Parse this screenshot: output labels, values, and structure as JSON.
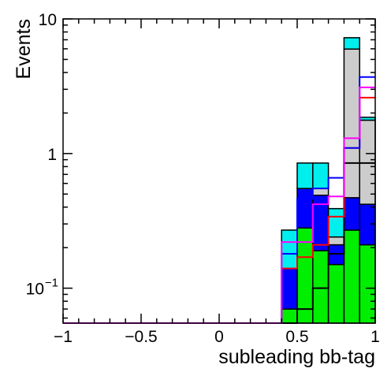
{
  "chart_data": {
    "type": "histogram-stack",
    "xlabel": "subleading bb-tag",
    "ylabel": "Events",
    "xlim": [
      -1,
      1
    ],
    "ylim": [
      0.055,
      10
    ],
    "yscale": "log",
    "grid": false,
    "bin_edges": [
      0.4,
      0.5,
      0.6,
      0.7,
      0.8,
      0.9,
      1.0
    ],
    "x_ticks": [
      {
        "value": -1,
        "label": "−1"
      },
      {
        "value": -0.5,
        "label": "−0.5"
      },
      {
        "value": 0,
        "label": "0"
      },
      {
        "value": 0.5,
        "label": "0.5"
      },
      {
        "value": 1,
        "label": "1"
      }
    ],
    "y_ticks": [
      {
        "value": 10,
        "label": "10"
      },
      {
        "value": 1,
        "label": "1"
      },
      {
        "value": 0.1,
        "label": "10",
        "exp": "−1"
      }
    ],
    "stack": [
      {
        "color": "#00ee00",
        "values": [
          0.07,
          0.28,
          0.19,
          0.15,
          0.27,
          0.21
        ]
      },
      {
        "color": "#0000ff",
        "values": [
          0.07,
          0.27,
          0.3,
          0.06,
          0.2,
          0.21
        ]
      },
      {
        "color": "#cccccc",
        "values": [
          0,
          0,
          0.06,
          0.03,
          5.5,
          1.35
        ]
      },
      {
        "color": "#00eeee",
        "values": [
          0.13,
          0.3,
          0.3,
          0.15,
          1.28,
          0.09
        ]
      }
    ],
    "outlines": [
      {
        "color": "#000000",
        "values": [
          0.04,
          0.07,
          0.1,
          0.18,
          0.85,
          0.85
        ]
      },
      {
        "color": "#ff0000",
        "values": [
          0.14,
          0.17,
          0.21,
          0.34,
          1.1,
          2.6
        ]
      },
      {
        "color": "#0000ff",
        "values": [
          0.18,
          0.46,
          0.55,
          0.66,
          1.1,
          3.7
        ]
      },
      {
        "color": "#ff00ff",
        "values": [
          0.22,
          0.22,
          0.42,
          0.48,
          1.3,
          3.1
        ]
      }
    ]
  }
}
